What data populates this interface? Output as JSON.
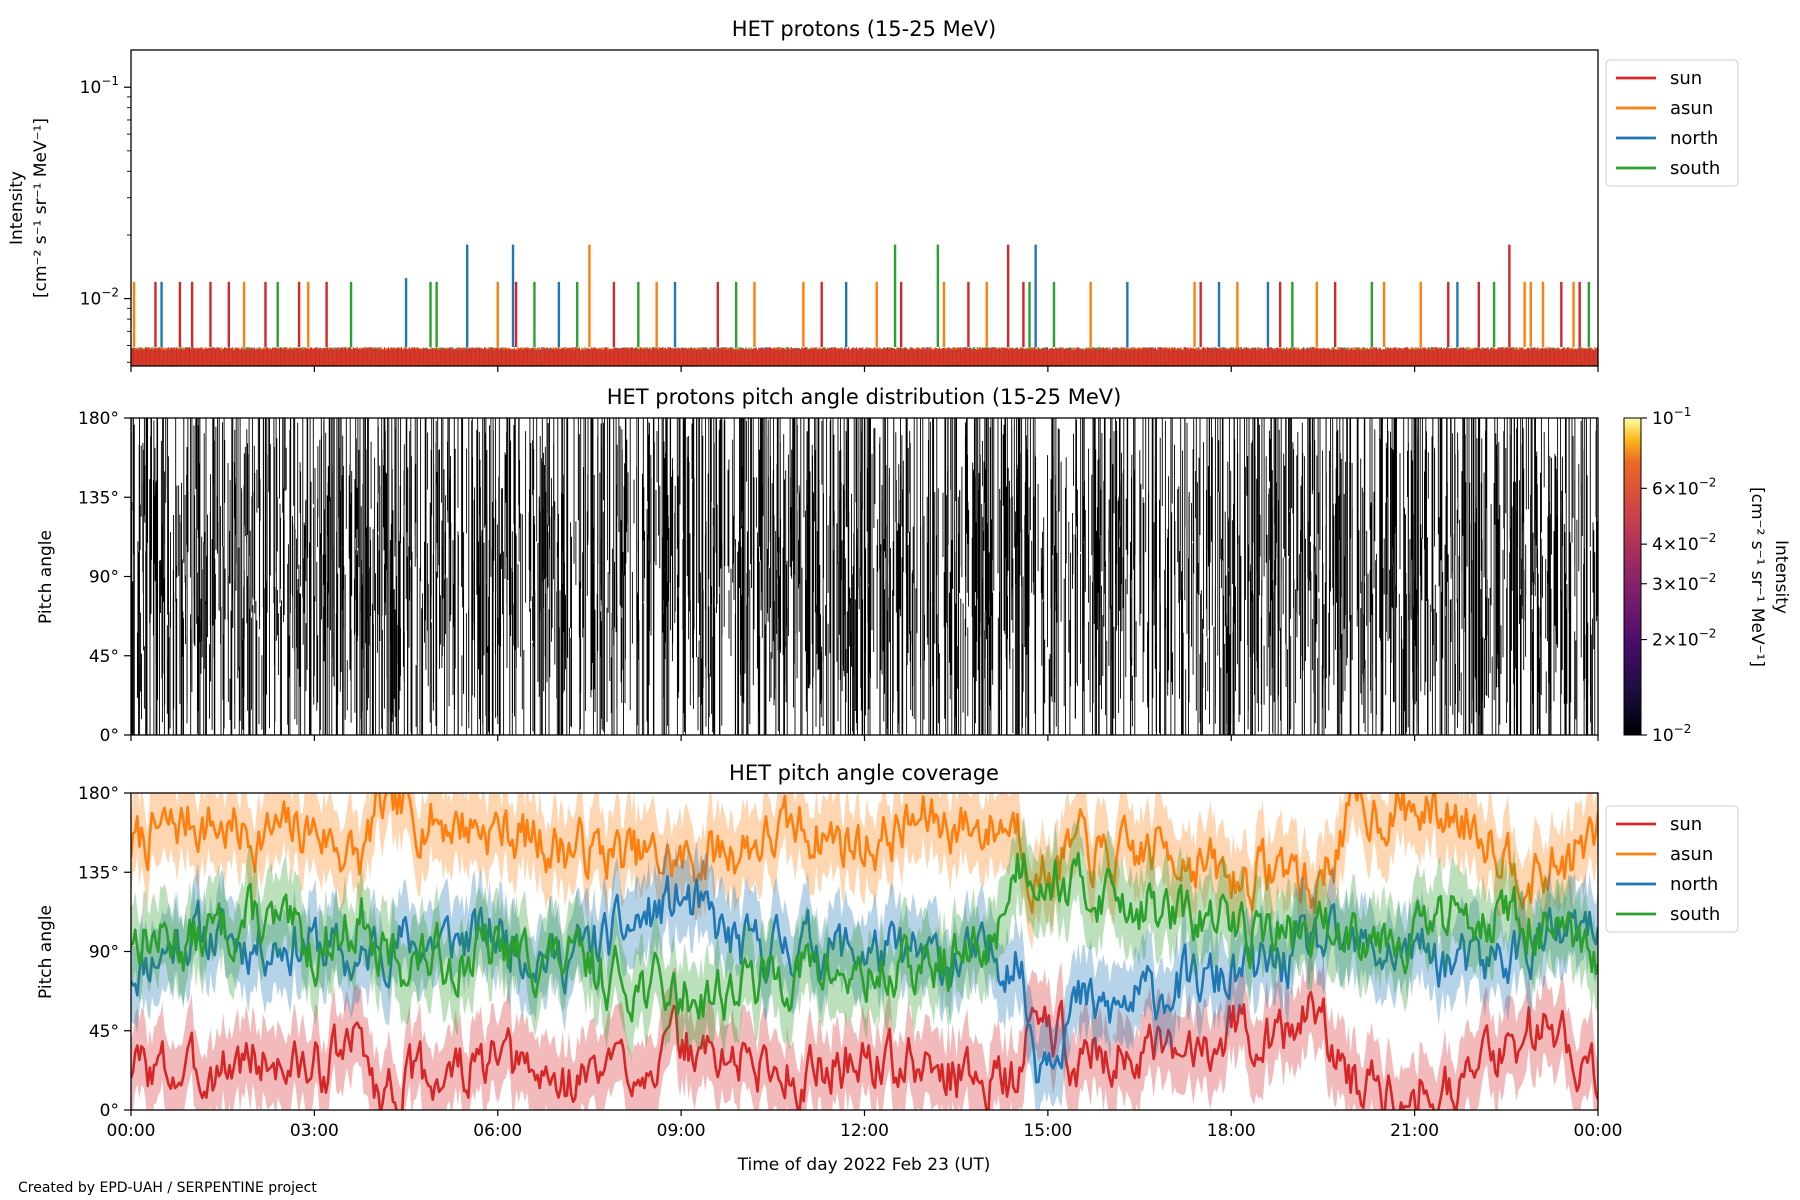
{
  "footer": {
    "credit": "Created by EPD-UAH / SERPENTINE project"
  },
  "colors": {
    "sun": "#d62728",
    "asun": "#ff7f0e",
    "north": "#1f77b4",
    "south": "#2ca02c"
  },
  "chart_data": [
    {
      "type": "line",
      "title": "HET protons (15-25 MeV)",
      "ylabel_line1": "Intensity",
      "ylabel_line2": "[cm⁻² s⁻¹ sr⁻¹ MeV⁻¹]",
      "yscale": "log",
      "ylim": [
        0.0048,
        0.15
      ],
      "yticks": [
        {
          "value": 0.1,
          "base": "10",
          "exp": "−1"
        },
        {
          "value": 0.01,
          "base": "10",
          "exp": "−2"
        }
      ],
      "baseline": 0.0059,
      "legend": {
        "entries": [
          "sun",
          "asun",
          "north",
          "south"
        ],
        "placement": "upper-right outside"
      },
      "series": [
        {
          "name": "sun",
          "spikes": [
            [
              0.4,
              0.012
            ],
            [
              0.8,
              0.012
            ],
            [
              1.0,
              0.012
            ],
            [
              1.3,
              0.012
            ],
            [
              1.6,
              0.012
            ],
            [
              2.2,
              0.012
            ],
            [
              2.75,
              0.012
            ],
            [
              3.2,
              0.012
            ],
            [
              6.3,
              0.012
            ],
            [
              7.9,
              0.012
            ],
            [
              9.6,
              0.012
            ],
            [
              11.3,
              0.012
            ],
            [
              12.6,
              0.012
            ],
            [
              13.7,
              0.012
            ],
            [
              14.35,
              0.018
            ],
            [
              14.6,
              0.012
            ],
            [
              17.5,
              0.012
            ],
            [
              18.8,
              0.012
            ],
            [
              19.7,
              0.012
            ],
            [
              21.55,
              0.012
            ],
            [
              22.05,
              0.012
            ],
            [
              22.55,
              0.018
            ],
            [
              23.4,
              0.012
            ],
            [
              23.7,
              0.012
            ]
          ]
        },
        {
          "name": "asun",
          "spikes": [
            [
              0.05,
              0.012
            ],
            [
              1.85,
              0.012
            ],
            [
              2.9,
              0.012
            ],
            [
              6.0,
              0.012
            ],
            [
              7.5,
              0.018
            ],
            [
              8.6,
              0.012
            ],
            [
              10.2,
              0.012
            ],
            [
              11.0,
              0.012
            ],
            [
              12.2,
              0.012
            ],
            [
              13.3,
              0.012
            ],
            [
              14.0,
              0.012
            ],
            [
              15.7,
              0.012
            ],
            [
              17.4,
              0.012
            ],
            [
              18.1,
              0.012
            ],
            [
              19.4,
              0.012
            ],
            [
              20.5,
              0.012
            ],
            [
              21.1,
              0.012
            ],
            [
              22.8,
              0.012
            ],
            [
              22.9,
              0.012
            ],
            [
              23.1,
              0.012
            ],
            [
              23.6,
              0.012
            ]
          ]
        },
        {
          "name": "north",
          "spikes": [
            [
              0.5,
              0.012
            ],
            [
              4.5,
              0.0125
            ],
            [
              5.5,
              0.018
            ],
            [
              6.25,
              0.018
            ],
            [
              7.0,
              0.012
            ],
            [
              8.9,
              0.012
            ],
            [
              11.7,
              0.012
            ],
            [
              14.8,
              0.018
            ],
            [
              16.3,
              0.012
            ],
            [
              17.8,
              0.012
            ],
            [
              18.6,
              0.012
            ],
            [
              21.7,
              0.012
            ]
          ]
        },
        {
          "name": "south",
          "spikes": [
            [
              2.4,
              0.012
            ],
            [
              3.6,
              0.012
            ],
            [
              4.9,
              0.012
            ],
            [
              5.0,
              0.012
            ],
            [
              6.6,
              0.012
            ],
            [
              7.3,
              0.012
            ],
            [
              8.3,
              0.012
            ],
            [
              9.9,
              0.012
            ],
            [
              12.5,
              0.018
            ],
            [
              13.2,
              0.018
            ],
            [
              14.7,
              0.012
            ],
            [
              15.1,
              0.012
            ],
            [
              19.0,
              0.012
            ],
            [
              20.3,
              0.012
            ],
            [
              22.3,
              0.012
            ],
            [
              23.85,
              0.012
            ]
          ]
        }
      ]
    },
    {
      "type": "heatmap",
      "title": "HET protons pitch angle distribution (15-25 MeV)",
      "ylabel": "Pitch angle",
      "ylim": [
        0,
        180
      ],
      "yticklabels": [
        "0°",
        "45°",
        "90°",
        "135°",
        "180°"
      ],
      "colorbar": {
        "label_line1": "Intensity",
        "label_line2": "[cm⁻² s⁻¹ sr⁻¹ MeV⁻¹]",
        "scale": "log",
        "range": [
          0.01,
          0.1
        ],
        "colormap": "inferno",
        "ticks": [
          {
            "value": 0.1,
            "text": "10",
            "exp": "−1"
          },
          {
            "value": 0.06,
            "text": "6×10",
            "exp": "−2"
          },
          {
            "value": 0.04,
            "text": "4×10",
            "exp": "−2"
          },
          {
            "value": 0.03,
            "text": "3×10",
            "exp": "−2"
          },
          {
            "value": 0.02,
            "text": "2×10",
            "exp": "−2"
          },
          {
            "value": 0.01,
            "text": "10",
            "exp": "−2"
          }
        ]
      }
    },
    {
      "type": "line",
      "title": "HET pitch angle coverage",
      "ylabel": "Pitch angle",
      "xlabel": "Time of day 2022 Feb 23 (UT)",
      "ylim": [
        0,
        180
      ],
      "yticklabels": [
        "0°",
        "45°",
        "90°",
        "135°",
        "180°"
      ],
      "legend": {
        "entries": [
          "sun",
          "asun",
          "north",
          "south"
        ],
        "placement": "upper-right outside"
      },
      "series": [
        {
          "name": "sun",
          "x_hours": [
            0,
            1,
            2,
            3,
            3.8,
            4,
            5,
            6,
            7,
            8,
            9,
            10,
            11,
            12,
            13,
            14,
            14.5,
            14.8,
            15.5,
            16,
            17,
            18,
            19,
            19.3,
            20,
            21,
            22,
            23,
            24
          ],
          "y": [
            25,
            20,
            30,
            22,
            40,
            10,
            20,
            25,
            15,
            25,
            35,
            28,
            20,
            30,
            22,
            20,
            15,
            55,
            30,
            35,
            25,
            50,
            40,
            60,
            15,
            15,
            20,
            50,
            25
          ]
        },
        {
          "name": "asun",
          "x_hours": [
            0,
            1,
            2,
            3,
            3.8,
            4,
            5,
            6,
            7,
            8,
            9,
            10,
            11,
            12,
            13,
            14,
            14.5,
            14.8,
            15.5,
            16,
            17,
            18,
            19,
            19.3,
            20,
            21,
            22,
            23,
            24
          ],
          "y": [
            150,
            165,
            155,
            160,
            140,
            170,
            165,
            160,
            150,
            145,
            140,
            150,
            160,
            150,
            165,
            160,
            165,
            130,
            150,
            140,
            150,
            130,
            140,
            120,
            170,
            170,
            165,
            130,
            155
          ]
        },
        {
          "name": "north",
          "x_hours": [
            0,
            1,
            2,
            3,
            3.8,
            4,
            5,
            6,
            7,
            8,
            9,
            10,
            11,
            12,
            13,
            14,
            14.5,
            14.8,
            15.5,
            16,
            17,
            18,
            19,
            19.3,
            20,
            21,
            22,
            23,
            24
          ],
          "y": [
            80,
            100,
            95,
            95,
            80,
            95,
            95,
            100,
            85,
            100,
            120,
            90,
            95,
            90,
            85,
            85,
            90,
            30,
            60,
            55,
            70,
            75,
            85,
            95,
            90,
            90,
            80,
            95,
            100
          ]
        },
        {
          "name": "south",
          "x_hours": [
            0,
            1,
            2,
            3,
            3.8,
            4,
            5,
            6,
            7,
            8,
            9,
            10,
            11,
            12,
            13,
            14,
            14.5,
            14.8,
            15.5,
            16,
            17,
            18,
            19,
            19.3,
            20,
            21,
            22,
            23,
            24
          ],
          "y": [
            100,
            95,
            110,
            90,
            110,
            85,
            85,
            90,
            85,
            75,
            65,
            70,
            80,
            75,
            80,
            90,
            140,
            140,
            125,
            125,
            110,
            105,
            100,
            100,
            105,
            100,
            115,
            105,
            80
          ]
        }
      ]
    }
  ],
  "xaxis": {
    "range_hours": [
      0,
      24
    ],
    "ticks": [
      {
        "h": 0,
        "label": "00:00"
      },
      {
        "h": 3,
        "label": "03:00"
      },
      {
        "h": 6,
        "label": "06:00"
      },
      {
        "h": 9,
        "label": "09:00"
      },
      {
        "h": 12,
        "label": "12:00"
      },
      {
        "h": 15,
        "label": "15:00"
      },
      {
        "h": 18,
        "label": "18:00"
      },
      {
        "h": 21,
        "label": "21:00"
      },
      {
        "h": 24,
        "label": "00:00"
      }
    ]
  }
}
